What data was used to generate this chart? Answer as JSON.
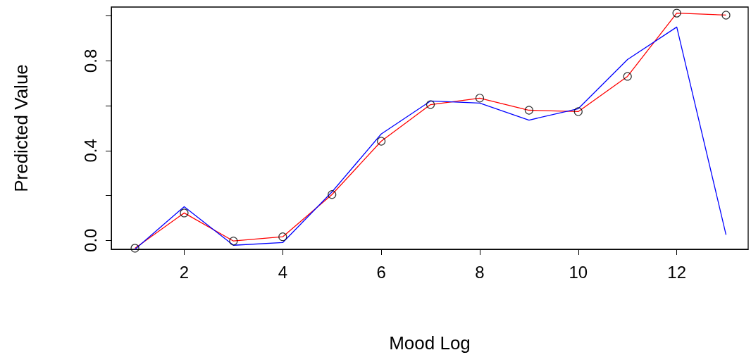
{
  "chart_data": {
    "type": "line",
    "xlabel": "Mood Log",
    "ylabel": "Predicted Value",
    "x": [
      1,
      2,
      3,
      4,
      5,
      6,
      7,
      8,
      9,
      10,
      11,
      12,
      13
    ],
    "series": [
      {
        "type": "scatter",
        "color": "#000000",
        "marker": "circle",
        "values": [
          -0.035,
          0.122,
          -0.003,
          0.016,
          0.204,
          0.442,
          0.605,
          0.634,
          0.58,
          0.574,
          0.731,
          1.013,
          1.004
        ]
      },
      {
        "color": "#ff0000",
        "values": [
          -0.035,
          0.122,
          -0.003,
          0.016,
          0.204,
          0.442,
          0.605,
          0.634,
          0.58,
          0.574,
          0.731,
          1.013,
          1.004
        ]
      },
      {
        "color": "#0000ff",
        "values": [
          -0.04,
          0.15,
          -0.022,
          -0.01,
          0.216,
          0.474,
          0.621,
          0.612,
          0.536,
          0.587,
          0.806,
          0.951,
          0.025
        ]
      }
    ],
    "xlim": [
      0.52,
      13.45
    ],
    "xticks": [
      2,
      4,
      6,
      8,
      10,
      12
    ],
    "ylim": [
      -0.04,
      1.04
    ],
    "yticks": [
      {
        "value": 0,
        "label": "0.0"
      },
      {
        "value": 0.2,
        "label": null
      },
      0.4,
      {
        "value": 0.6,
        "label": null
      },
      0.8,
      {
        "value": 1.0,
        "label": null
      }
    ],
    "grid": false
  }
}
